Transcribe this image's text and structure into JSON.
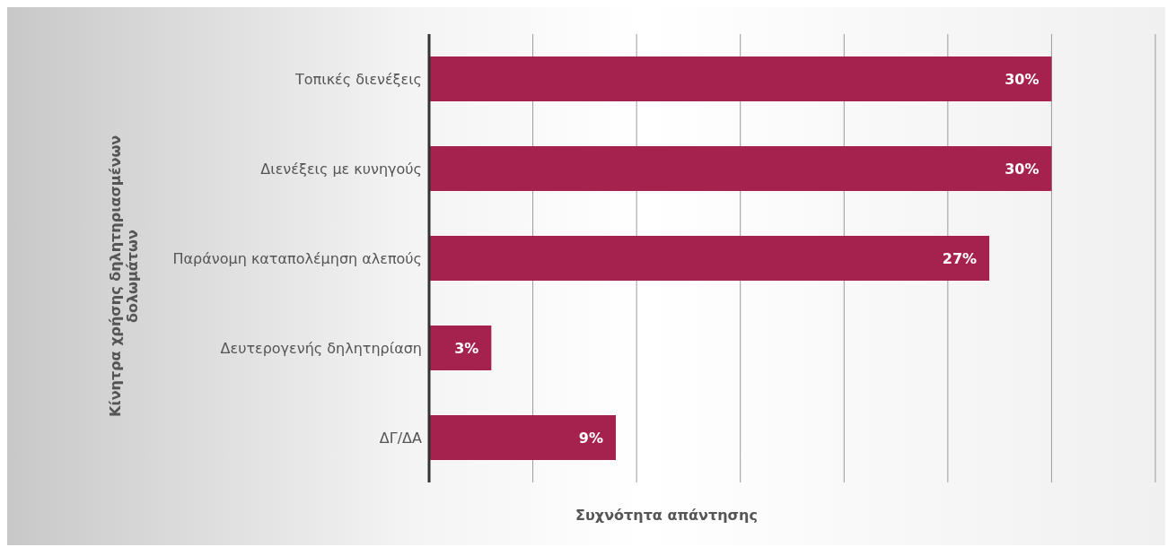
{
  "chart_data": {
    "type": "bar",
    "orientation": "horizontal",
    "ylabel": "Κίνητρα χρήσης δηλητηριασμένων δολωμάτων",
    "xlabel": "Συχνότητα απάντησης",
    "categories": [
      "Τοπικές διενέξεις",
      "Διενέξεις με κυνηγούς",
      "Παράνομη καταπολέμηση αλεπούς",
      "Δευτερογενής δηλητηρίαση",
      "ΔΓ/ΔΑ"
    ],
    "values": [
      30,
      30,
      27,
      3,
      9
    ],
    "color": "#a5214e",
    "value_labels": [
      "30%",
      "30%",
      "27%",
      "3%",
      "9%"
    ],
    "xlim": [
      0,
      35
    ],
    "xticks": [
      {
        "value": 0,
        "label": null
      },
      {
        "value": 5,
        "label": null
      },
      {
        "value": 10,
        "label": null
      },
      {
        "value": 15,
        "label": null
      },
      {
        "value": 20,
        "label": null
      },
      {
        "value": 25,
        "label": null
      },
      {
        "value": 30,
        "label": null
      },
      {
        "value": 35,
        "label": null
      }
    ],
    "grid": "x",
    "legend": false,
    "tick_labels": "y"
  }
}
